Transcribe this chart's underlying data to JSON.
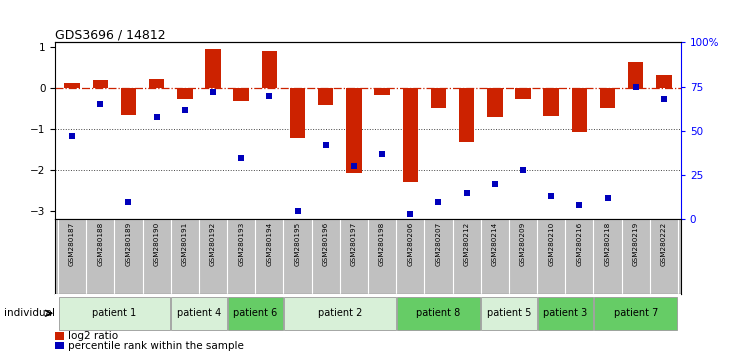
{
  "title": "GDS3696 / 14812",
  "samples": [
    "GSM280187",
    "GSM280188",
    "GSM280189",
    "GSM280190",
    "GSM280191",
    "GSM280192",
    "GSM280193",
    "GSM280194",
    "GSM280195",
    "GSM280196",
    "GSM280197",
    "GSM280198",
    "GSM280206",
    "GSM280207",
    "GSM280212",
    "GSM280214",
    "GSM280209",
    "GSM280210",
    "GSM280216",
    "GSM280218",
    "GSM280219",
    "GSM280222"
  ],
  "log2_ratio": [
    0.12,
    0.18,
    -0.65,
    0.22,
    -0.28,
    0.93,
    -0.32,
    0.9,
    -1.22,
    -0.42,
    -2.08,
    -0.18,
    -2.28,
    -0.48,
    -1.32,
    -0.72,
    -0.28,
    -0.68,
    -1.08,
    -0.48,
    0.62,
    0.32
  ],
  "percentile_rank": [
    47,
    65,
    10,
    58,
    62,
    72,
    35,
    70,
    5,
    42,
    30,
    37,
    3,
    10,
    15,
    20,
    28,
    13,
    8,
    12,
    75,
    68
  ],
  "patients": [
    {
      "label": "patient 1",
      "samples": [
        "GSM280187",
        "GSM280188",
        "GSM280189",
        "GSM280190"
      ],
      "color": "#d8f0d8"
    },
    {
      "label": "patient 4",
      "samples": [
        "GSM280191",
        "GSM280192"
      ],
      "color": "#d8f0d8"
    },
    {
      "label": "patient 6",
      "samples": [
        "GSM280193",
        "GSM280194"
      ],
      "color": "#66cc66"
    },
    {
      "label": "patient 2",
      "samples": [
        "GSM280195",
        "GSM280196",
        "GSM280197",
        "GSM280198"
      ],
      "color": "#d8f0d8"
    },
    {
      "label": "patient 8",
      "samples": [
        "GSM280206",
        "GSM280207",
        "GSM280212"
      ],
      "color": "#66cc66"
    },
    {
      "label": "patient 5",
      "samples": [
        "GSM280214",
        "GSM280209"
      ],
      "color": "#d8f0d8"
    },
    {
      "label": "patient 3",
      "samples": [
        "GSM280210",
        "GSM280216"
      ],
      "color": "#66cc66"
    },
    {
      "label": "patient 7",
      "samples": [
        "GSM280218",
        "GSM280219",
        "GSM280222"
      ],
      "color": "#66cc66"
    }
  ],
  "bar_color": "#cc2200",
  "dot_color": "#0000bb",
  "ref_line_color": "#cc2200",
  "dotted_line_color": "#444444",
  "ylim_left": [
    -3.2,
    1.1
  ],
  "ylim_right": [
    0,
    100
  ],
  "yticks_left": [
    1,
    0,
    -1,
    -2,
    -3
  ],
  "yticks_right": [
    0,
    25,
    50,
    75,
    100
  ],
  "legend_log2": "log2 ratio",
  "legend_pct": "percentile rank within the sample",
  "background_color": "#ffffff",
  "label_bg_color": "#c0c0c0",
  "label_divider_color": "#ffffff"
}
